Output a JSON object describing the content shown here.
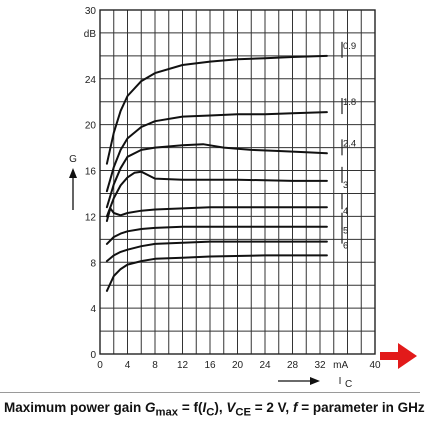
{
  "chart_data": {
    "type": "line",
    "title": "",
    "xlabel": "I",
    "xlabel_sub": "C",
    "ylabel": "G",
    "x_unit": "mA",
    "y_unit": "dB",
    "xlim": [
      0,
      40
    ],
    "ylim": [
      0,
      30
    ],
    "x_ticks": [
      "0",
      "4",
      "8",
      "12",
      "16",
      "20",
      "24",
      "28",
      "32"
    ],
    "y_ticks": [
      "0",
      "4",
      "8",
      "12",
      "16",
      "20",
      "24",
      "30"
    ],
    "grid": true,
    "series": [
      {
        "name": "0.9",
        "points": [
          [
            1,
            16.6
          ],
          [
            2,
            19.3
          ],
          [
            3,
            21.2
          ],
          [
            4,
            22.5
          ],
          [
            6,
            23.8
          ],
          [
            8,
            24.5
          ],
          [
            12,
            25.2
          ],
          [
            16,
            25.5
          ],
          [
            20,
            25.7
          ],
          [
            24,
            25.8
          ],
          [
            28,
            25.9
          ],
          [
            33,
            26.0
          ]
        ]
      },
      {
        "name": "1.8",
        "points": [
          [
            1,
            14.2
          ],
          [
            2,
            16.3
          ],
          [
            3,
            17.8
          ],
          [
            4,
            18.8
          ],
          [
            6,
            19.8
          ],
          [
            8,
            20.3
          ],
          [
            12,
            20.7
          ],
          [
            16,
            20.8
          ],
          [
            20,
            20.9
          ],
          [
            24,
            20.9
          ],
          [
            28,
            21.0
          ],
          [
            33,
            21.1
          ]
        ]
      },
      {
        "name": "2.4",
        "points": [
          [
            1,
            12.8
          ],
          [
            2,
            14.8
          ],
          [
            3,
            16.2
          ],
          [
            4,
            17.2
          ],
          [
            6,
            17.8
          ],
          [
            8,
            18.0
          ],
          [
            12,
            18.2
          ],
          [
            15,
            18.3
          ],
          [
            18,
            18.0
          ],
          [
            22,
            17.8
          ],
          [
            26,
            17.7
          ],
          [
            30,
            17.6
          ],
          [
            33,
            17.5
          ]
        ]
      },
      {
        "name": "3",
        "points": [
          [
            1,
            12.0
          ],
          [
            2,
            13.6
          ],
          [
            3,
            14.7
          ],
          [
            4,
            15.4
          ],
          [
            5,
            15.8
          ],
          [
            6,
            15.9
          ],
          [
            7,
            15.6
          ],
          [
            8,
            15.3
          ],
          [
            12,
            15.2
          ],
          [
            20,
            15.2
          ],
          [
            28,
            15.1
          ],
          [
            33,
            15.1
          ]
        ]
      },
      {
        "name": "4",
        "points": [
          [
            1,
            11.6
          ],
          [
            1.5,
            12.7
          ],
          [
            2,
            12.3
          ],
          [
            3,
            12.1
          ],
          [
            4,
            12.3
          ],
          [
            6,
            12.5
          ],
          [
            8,
            12.6
          ],
          [
            12,
            12.7
          ],
          [
            16,
            12.8
          ],
          [
            24,
            12.8
          ],
          [
            33,
            12.8
          ]
        ]
      },
      {
        "name": "5",
        "points": [
          [
            1,
            9.6
          ],
          [
            2,
            10.2
          ],
          [
            3,
            10.5
          ],
          [
            4,
            10.7
          ],
          [
            6,
            10.9
          ],
          [
            8,
            11.0
          ],
          [
            12,
            11.1
          ],
          [
            16,
            11.1
          ],
          [
            24,
            11.1
          ],
          [
            33,
            11.1
          ]
        ]
      },
      {
        "name": "6",
        "points": [
          [
            1,
            8.1
          ],
          [
            2,
            8.6
          ],
          [
            3,
            8.9
          ],
          [
            4,
            9.1
          ],
          [
            6,
            9.4
          ],
          [
            8,
            9.6
          ],
          [
            12,
            9.7
          ],
          [
            16,
            9.8
          ],
          [
            24,
            9.8
          ],
          [
            33,
            9.8
          ]
        ]
      },
      {
        "name": "",
        "points": [
          [
            1,
            5.5
          ],
          [
            2,
            6.8
          ],
          [
            3,
            7.4
          ],
          [
            4,
            7.8
          ],
          [
            6,
            8.1
          ],
          [
            8,
            8.3
          ],
          [
            12,
            8.4
          ],
          [
            16,
            8.5
          ],
          [
            24,
            8.6
          ],
          [
            33,
            8.6
          ]
        ]
      }
    ],
    "caption": "Maximum power gain G_max = f(I_C), V_CE = 2 V, f = parameter in GHz"
  },
  "caption": {
    "prefix": "Maximum power gain ",
    "g": "G",
    "g_sub": "max",
    "eq1": " = f(",
    "i": "I",
    "i_sub": "C",
    "mid": "), ",
    "v": "V",
    "v_sub": "CE",
    "eq2": " = 2 V, ",
    "f": "f",
    "suffix": " = parameter in GHz"
  }
}
